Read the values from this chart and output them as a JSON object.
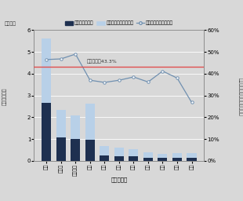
{
  "categories": [
    "東京",
    "名古屋",
    "関東信越",
    "大阪",
    "広島",
    "仙台",
    "福岡",
    "高松",
    "熊本",
    "金沢",
    "札幌"
  ],
  "land_values": [
    2.65,
    1.08,
    1.02,
    0.97,
    0.25,
    0.22,
    0.2,
    0.13,
    0.15,
    0.15,
    0.14
  ],
  "other_values": [
    2.95,
    1.25,
    1.05,
    1.65,
    0.43,
    0.38,
    0.32,
    0.27,
    0.17,
    0.22,
    0.22
  ],
  "ratio_values": [
    46.5,
    46.8,
    49.0,
    37.0,
    36.0,
    37.0,
    38.5,
    36.2,
    41.2,
    38.0,
    26.8
  ],
  "national_avg": 43.3,
  "national_avg_label": "全国ベース43.3%",
  "bar_color_land": "#1e3050",
  "bar_color_other": "#b8d0e8",
  "line_color": "#7090b0",
  "ref_line_color": "#e05050",
  "ylim_left": [
    0,
    6
  ],
  "ylim_right": [
    0,
    60
  ],
  "yticks_left": [
    0,
    1,
    2,
    3,
    4,
    5,
    6
  ],
  "yticks_right": [
    0,
    10,
    20,
    30,
    40,
    50,
    60
  ],
  "ylabel_left": "相続財産総額",
  "ylabel_right": "土地・家屋価額の占める割合",
  "xlabel": "（国税局）",
  "unit_label": "（兆円）",
  "legend_label_land": "土地・家屋価額",
  "legend_label_other": "土地・家屋以外の価額",
  "legend_label_ratio": "土地・家屋価額の割合",
  "bg_color": "#d8d8d8",
  "plot_bg_color": "#d8d8d8"
}
